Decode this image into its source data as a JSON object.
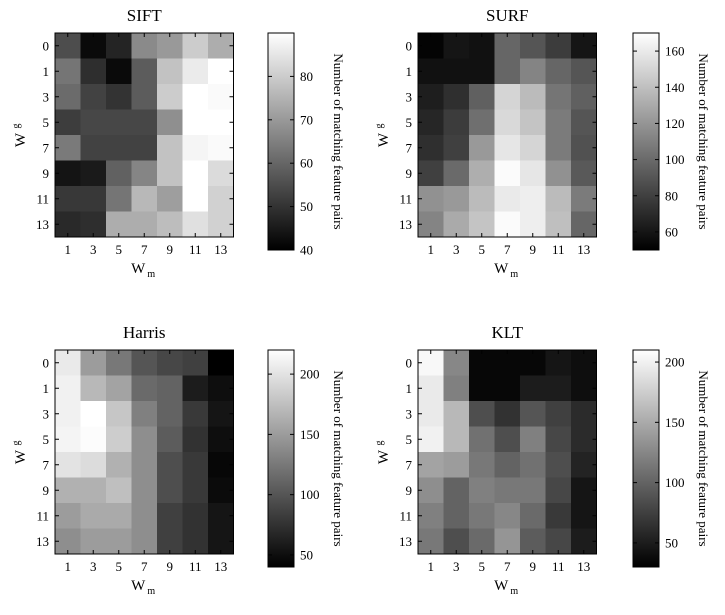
{
  "chart_data": [
    {
      "type": "heatmap",
      "title": "SIFT",
      "xlabel": "W",
      "xlabel_sub": "m",
      "ylabel": "W",
      "ylabel_sub": "g",
      "x_ticks": [
        "1",
        "3",
        "5",
        "7",
        "9",
        "11",
        "13"
      ],
      "y_ticks": [
        "0",
        "1",
        "3",
        "5",
        "7",
        "9",
        "11",
        "13"
      ],
      "colorbar": {
        "label": "Number of matching feature pairs",
        "min": 40,
        "max": 90,
        "ticks": [
          40,
          50,
          60,
          70,
          80
        ]
      },
      "values": [
        [
          55,
          42,
          47,
          67,
          70,
          80,
          74
        ],
        [
          63,
          49,
          42,
          58,
          78,
          86,
          91
        ],
        [
          61,
          53,
          50,
          58,
          80,
          92,
          89
        ],
        [
          52,
          54,
          54,
          54,
          68,
          93,
          90
        ],
        [
          64,
          53,
          53,
          53,
          78,
          88,
          89
        ],
        [
          44,
          45,
          59,
          66,
          78,
          92,
          83
        ],
        [
          51,
          51,
          63,
          76,
          71,
          91,
          81
        ],
        [
          48,
          49,
          74,
          74,
          77,
          84,
          81
        ]
      ]
    },
    {
      "type": "heatmap",
      "title": "SURF",
      "xlabel": "W",
      "xlabel_sub": "m",
      "ylabel": "W",
      "ylabel_sub": "g",
      "x_ticks": [
        "1",
        "3",
        "5",
        "7",
        "9",
        "11",
        "13"
      ],
      "y_ticks": [
        "0",
        "1",
        "3",
        "5",
        "7",
        "9",
        "11",
        "13"
      ],
      "colorbar": {
        "label": "Number of matching feature pairs",
        "min": 50,
        "max": 170,
        "ticks": [
          60,
          80,
          100,
          120,
          140,
          160
        ]
      },
      "values": [
        [
          52,
          60,
          58,
          98,
          90,
          78,
          60
        ],
        [
          58,
          58,
          58,
          98,
          112,
          98,
          90
        ],
        [
          64,
          72,
          95,
          150,
          138,
          105,
          95
        ],
        [
          68,
          78,
          102,
          152,
          142,
          108,
          90
        ],
        [
          72,
          80,
          122,
          158,
          150,
          108,
          88
        ],
        [
          80,
          100,
          132,
          168,
          158,
          118,
          92
        ],
        [
          118,
          122,
          138,
          160,
          162,
          138,
          108
        ],
        [
          112,
          130,
          142,
          168,
          162,
          140,
          98
        ]
      ]
    },
    {
      "type": "heatmap",
      "title": "Harris",
      "xlabel": "W",
      "xlabel_sub": "m",
      "ylabel": "W",
      "ylabel_sub": "g",
      "x_ticks": [
        "1",
        "3",
        "5",
        "7",
        "9",
        "11",
        "13"
      ],
      "y_ticks": [
        "0",
        "1",
        "3",
        "5",
        "7",
        "9",
        "11",
        "13"
      ],
      "colorbar": {
        "label": "Number of matching feature pairs",
        "min": 40,
        "max": 220,
        "ticks": [
          50,
          100,
          150,
          200
        ]
      },
      "values": [
        [
          205,
          150,
          125,
          100,
          90,
          85,
          40
        ],
        [
          210,
          170,
          155,
          115,
          110,
          60,
          50
        ],
        [
          210,
          222,
          180,
          130,
          110,
          80,
          55
        ],
        [
          212,
          218,
          185,
          140,
          105,
          75,
          50
        ],
        [
          200,
          195,
          165,
          140,
          95,
          80,
          45
        ],
        [
          165,
          165,
          175,
          140,
          95,
          80,
          48
        ],
        [
          150,
          160,
          160,
          140,
          85,
          75,
          55
        ],
        [
          140,
          150,
          150,
          140,
          85,
          75,
          55
        ]
      ]
    },
    {
      "type": "heatmap",
      "title": "KLT",
      "xlabel": "W",
      "xlabel_sub": "m",
      "ylabel": "W",
      "ylabel_sub": "g",
      "x_ticks": [
        "1",
        "3",
        "5",
        "7",
        "9",
        "11",
        "13"
      ],
      "y_ticks": [
        "0",
        "1",
        "3",
        "5",
        "7",
        "9",
        "11",
        "13"
      ],
      "colorbar": {
        "label": "Number of matching feature pairs",
        "min": 30,
        "max": 210,
        "ticks": [
          50,
          100,
          150,
          200
        ]
      },
      "values": [
        [
          205,
          125,
          35,
          35,
          35,
          45,
          40
        ],
        [
          195,
          120,
          35,
          35,
          50,
          50,
          40
        ],
        [
          195,
          160,
          85,
          65,
          90,
          75,
          60
        ],
        [
          200,
          160,
          110,
          85,
          120,
          80,
          60
        ],
        [
          145,
          140,
          115,
          100,
          110,
          85,
          55
        ],
        [
          130,
          100,
          120,
          115,
          115,
          80,
          45
        ],
        [
          120,
          100,
          115,
          125,
          105,
          70,
          45
        ],
        [
          115,
          85,
          105,
          135,
          95,
          80,
          50
        ]
      ]
    }
  ]
}
